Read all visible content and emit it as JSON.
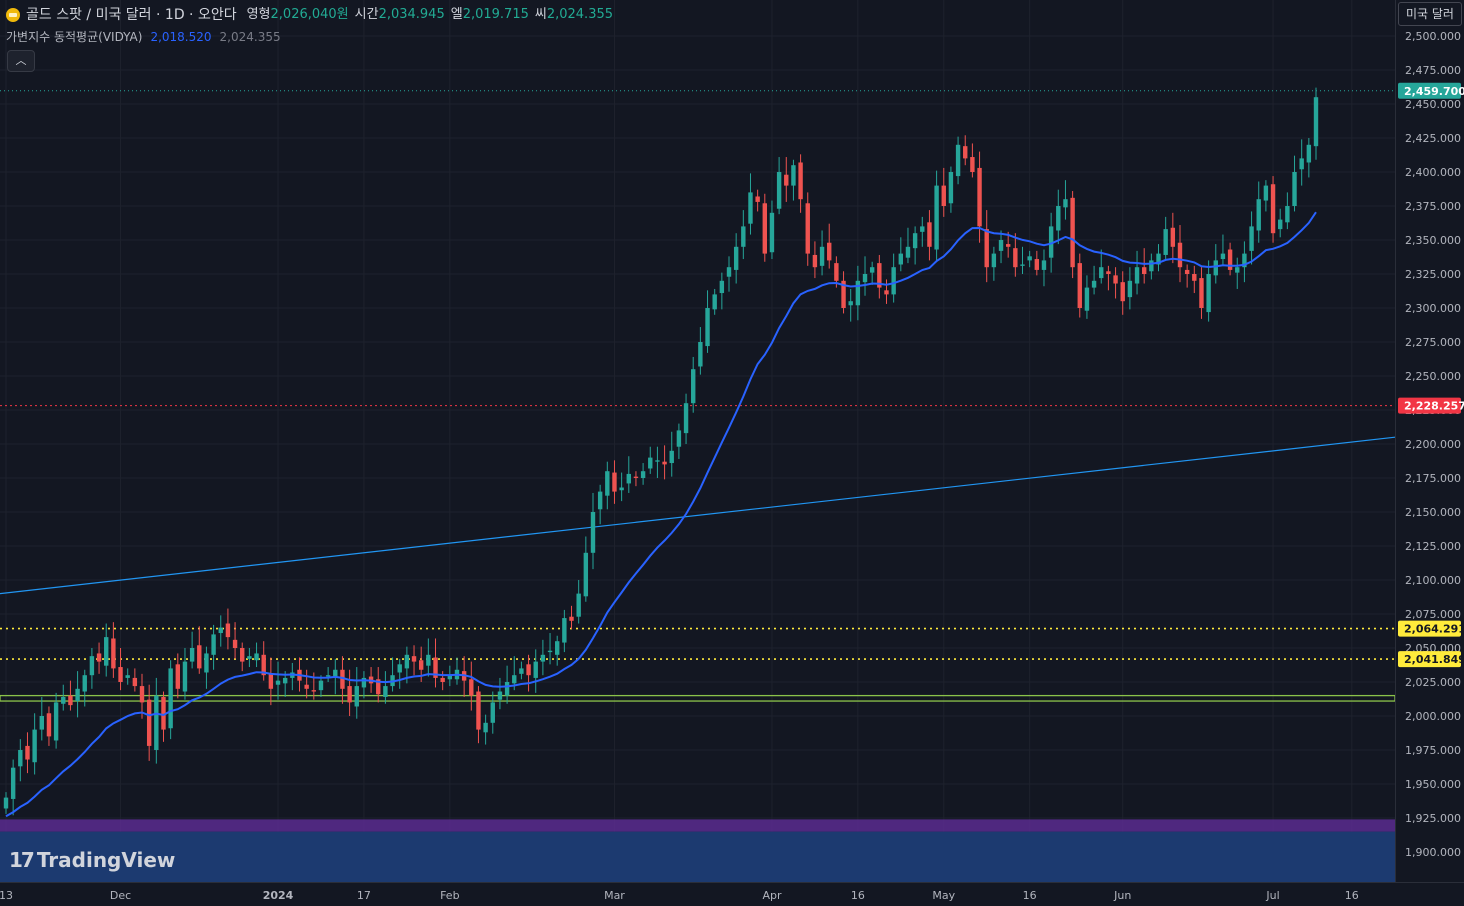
{
  "header": {
    "symbol_title": "골드 스팟 / 미국 달러 · 1D · 오안다",
    "ohlc": [
      {
        "label": "영형",
        "value": "2,026,040원"
      },
      {
        "label": "시간",
        "value": "2,034.945"
      },
      {
        "label": "엘",
        "value": "2,019.715"
      },
      {
        "label": "씨",
        "value": "2,024.355"
      }
    ],
    "indicator": {
      "name": "가변지수 동적평균(VIDYA)",
      "value1": "2,018.520",
      "value2": "2,024.355"
    },
    "collapse_icon": "chevron-up-icon",
    "currency_button": "미국 달러"
  },
  "branding": {
    "logo_text": "TradingView",
    "logo_mark": "17"
  },
  "colors": {
    "background": "#131722",
    "up": "#26a69a",
    "down": "#ef5350",
    "vidya": "#2962ff",
    "trendline": "#2196f3",
    "red_level": "#f23645",
    "yellow_level": "#ffeb3b",
    "green_level": "#8bc34a",
    "purple_band": "#5b2c8f",
    "blue_band": "#1c3a70"
  },
  "chart_data": {
    "type": "candlestick",
    "title": "골드 스팟 / 미국 달러",
    "ylim": [
      1875,
      2515
    ],
    "y_ticks": [
      1900,
      1925,
      1950,
      1975,
      2000,
      2025,
      2050,
      2075,
      2100,
      2125,
      2150,
      2175,
      2200,
      2225,
      2250,
      2275,
      2300,
      2325,
      2350,
      2375,
      2400,
      2425,
      2450,
      2475,
      2500
    ],
    "x_labels": [
      {
        "label": "13",
        "index": 0
      },
      {
        "label": "Dec",
        "index": 16
      },
      {
        "label": "2024",
        "index": 38
      },
      {
        "label": "17",
        "index": 50
      },
      {
        "label": "Feb",
        "index": 62
      },
      {
        "label": "Mar",
        "index": 85
      },
      {
        "label": "Apr",
        "index": 107
      },
      {
        "label": "16",
        "index": 119
      },
      {
        "label": "May",
        "index": 131
      },
      {
        "label": "16",
        "index": 143
      },
      {
        "label": "Jun",
        "index": 156
      },
      {
        "label": "Jul",
        "index": 177
      },
      {
        "label": "16",
        "index": 188
      }
    ],
    "closes": [
      1940,
      1962,
      1975,
      1968,
      1990,
      2000,
      1985,
      2010,
      2014,
      2008,
      2020,
      2030,
      2044,
      2040,
      2058,
      2035,
      2025,
      2030,
      2022,
      2010,
      1978,
      2015,
      1990,
      2035,
      2020,
      2040,
      2050,
      2035,
      2046,
      2060,
      2065,
      2058,
      2050,
      2040,
      2044,
      2046,
      2030,
      2020,
      2026,
      2028,
      2032,
      2026,
      2020,
      2018,
      2026,
      2030,
      2034,
      2020,
      2010,
      2022,
      2028,
      2024,
      2016,
      2022,
      2030,
      2038,
      2045,
      2040,
      2034,
      2045,
      2028,
      2025,
      2030,
      2034,
      2026,
      2015,
      1990,
      1995,
      2010,
      2018,
      2025,
      2030,
      2035,
      2030,
      2040,
      2045,
      2048,
      2055,
      2072,
      2070,
      2090,
      2120,
      2150,
      2165,
      2180,
      2165,
      2168,
      2178,
      2175,
      2180,
      2190,
      2188,
      2185,
      2195,
      2210,
      2230,
      2255,
      2275,
      2300,
      2310,
      2320,
      2330,
      2345,
      2360,
      2385,
      2378,
      2340,
      2370,
      2400,
      2390,
      2405,
      2380,
      2340,
      2330,
      2345,
      2335,
      2320,
      2300,
      2305,
      2320,
      2325,
      2330,
      2315,
      2310,
      2330,
      2340,
      2345,
      2355,
      2360,
      2345,
      2390,
      2375,
      2400,
      2420,
      2410,
      2400,
      2360,
      2330,
      2340,
      2350,
      2345,
      2330,
      2332,
      2338,
      2328,
      2335,
      2360,
      2375,
      2380,
      2330,
      2300,
      2315,
      2320,
      2330,
      2325,
      2318,
      2305,
      2320,
      2330,
      2325,
      2335,
      2340,
      2358,
      2345,
      2330,
      2325,
      2320,
      2300,
      2325,
      2335,
      2340,
      2328,
      2330,
      2340,
      2360,
      2380,
      2390,
      2355,
      2365,
      2375,
      2400,
      2410,
      2420,
      2455
    ],
    "opens_note": "",
    "vidya_endpoint": 2395,
    "levels": [
      {
        "value": 2459.7,
        "label": "2,459.700",
        "style": "current"
      },
      {
        "value": 2228.257,
        "label": "2,228.257",
        "style": "red"
      },
      {
        "value": 2064.291,
        "label": "2,064.291",
        "style": "yellow"
      },
      {
        "value": 2041.849,
        "label": "2,041.849",
        "style": "yellow"
      }
    ],
    "trendline": {
      "start": 2090,
      "end": 2205
    },
    "green_zone": [
      2011,
      2015
    ],
    "purple_zone": [
      1915,
      1924
    ],
    "blue_zone": [
      1870,
      1915
    ]
  }
}
